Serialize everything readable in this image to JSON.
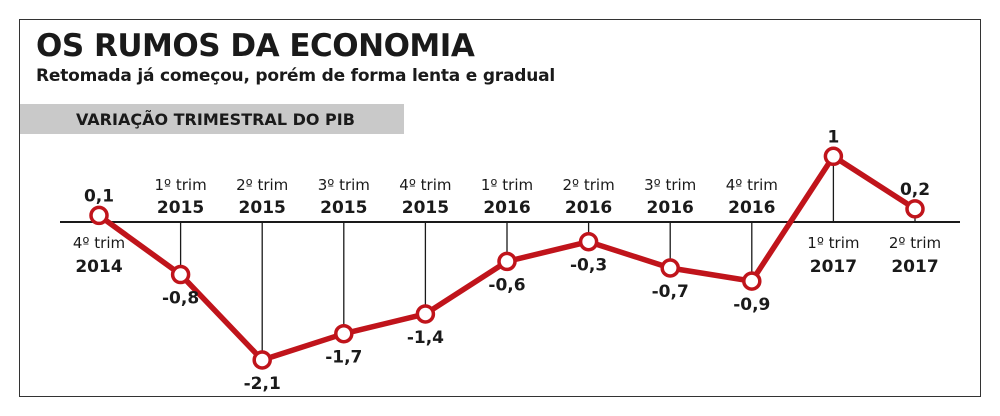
{
  "header": {
    "title": "OS RUMOS DA ECONOMIA",
    "subtitle": "Retomada já começou, porém de forma lenta e gradual",
    "band": "VARIAÇÃO TRIMESTRAL DO PIB"
  },
  "chart_data": {
    "type": "line",
    "title": "VARIAÇÃO TRIMESTRAL DO PIB",
    "categories": [
      {
        "quarter": "4º trim",
        "year": "2014"
      },
      {
        "quarter": "1º trim",
        "year": "2015"
      },
      {
        "quarter": "2º trim",
        "year": "2015"
      },
      {
        "quarter": "3º trim",
        "year": "2015"
      },
      {
        "quarter": "4º trim",
        "year": "2015"
      },
      {
        "quarter": "1º trim",
        "year": "2016"
      },
      {
        "quarter": "2º trim",
        "year": "2016"
      },
      {
        "quarter": "3º trim",
        "year": "2016"
      },
      {
        "quarter": "4º trim",
        "year": "2016"
      },
      {
        "quarter": "1º trim",
        "year": "2017"
      },
      {
        "quarter": "2º trim",
        "year": "2017"
      }
    ],
    "values": [
      0.1,
      -0.8,
      -2.1,
      -1.7,
      -1.4,
      -0.6,
      -0.3,
      -0.7,
      -0.9,
      1,
      0.2
    ],
    "value_labels": [
      "0,1",
      "-0,8",
      "-2,1",
      "-1,7",
      "-1,4",
      "-0,6",
      "-0,3",
      "-0,7",
      "-0,9",
      "1",
      "0,2"
    ],
    "line_color": "#c0141b",
    "marker_fill": "#ffffff"
  }
}
